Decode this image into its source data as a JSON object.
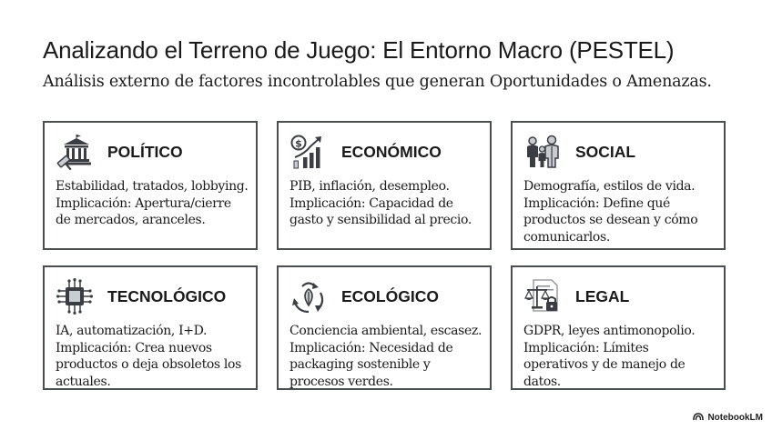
{
  "title": "Analizando el Terreno de Juego: El Entorno Macro (PESTEL)",
  "subtitle": "Análisis externo de factores incontrolables que generan Oportunidades o Amenazas.",
  "cards": [
    {
      "title": "POLÍTICO",
      "icon": "government-gavel-icon",
      "lines": [
        "Estabilidad, tratados, lobbying.",
        "Implicación: Apertura/cierre",
        "de mercados, aranceles."
      ]
    },
    {
      "title": "ECONÓMICO",
      "icon": "money-growth-chart-icon",
      "lines": [
        "PIB, inflación, desempleo.",
        "Implicación: Capacidad de",
        "gasto y sensibilidad al precio."
      ]
    },
    {
      "title": "SOCIAL",
      "icon": "family-people-icon",
      "lines": [
        "Demografía, estilos de vida.",
        "Implicación: Define qué",
        "productos se desean y cómo",
        "comunicarlos."
      ]
    },
    {
      "title": "TECNOLÓGICO",
      "icon": "microchip-icon",
      "lines": [
        "IA, automatización, I+D.",
        "Implicación: Crea nuevos",
        "productos o deja obsoletos los",
        "actuales."
      ]
    },
    {
      "title": "ECOLÓGICO",
      "icon": "recycle-leaf-icon",
      "lines": [
        "Conciencia ambiental, escasez.",
        "Implicación: Necesidad de",
        "packaging sostenible y",
        "procesos verdes."
      ]
    },
    {
      "title": "LEGAL",
      "icon": "scales-lock-document-icon",
      "lines": [
        "GDPR, leyes antimonopolio.",
        "Implicación: Límites",
        "operativos y de manejo de",
        "datos."
      ]
    }
  ],
  "footer": {
    "brand": "NotebookLM",
    "icon": "notebooklm-logo-icon"
  },
  "colors": {
    "border": "#4a4d52",
    "text": "#1a1a1a",
    "icon_dark": "#3a3d42",
    "icon_light": "#c9ccd0"
  }
}
